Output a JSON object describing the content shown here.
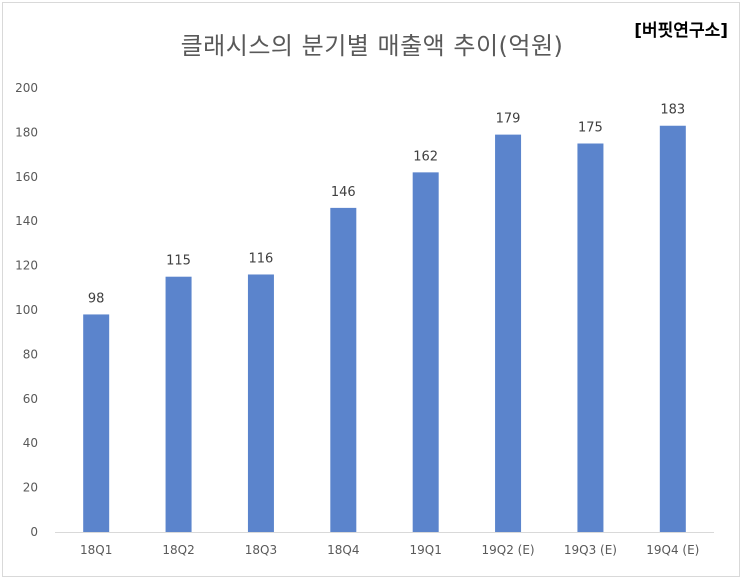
{
  "chart_data": {
    "type": "bar",
    "title": "클래시스의 분기별 매출액 추이(억원)",
    "source_label": "[버핏연구소]",
    "categories": [
      "18Q1",
      "18Q2",
      "18Q3",
      "18Q4",
      "19Q1",
      "19Q2 (E)",
      "19Q3 (E)",
      "19Q4 (E)"
    ],
    "values": [
      98,
      115,
      116,
      146,
      162,
      179,
      175,
      183
    ],
    "ylim": [
      0,
      200
    ],
    "yticks": [
      0,
      20,
      40,
      60,
      80,
      100,
      120,
      140,
      160,
      180,
      200
    ],
    "xlabel": "",
    "ylabel": "",
    "grid": false,
    "legend": "none",
    "bar_color": "#5b84cc",
    "axis_color": "#d9d9d9"
  }
}
